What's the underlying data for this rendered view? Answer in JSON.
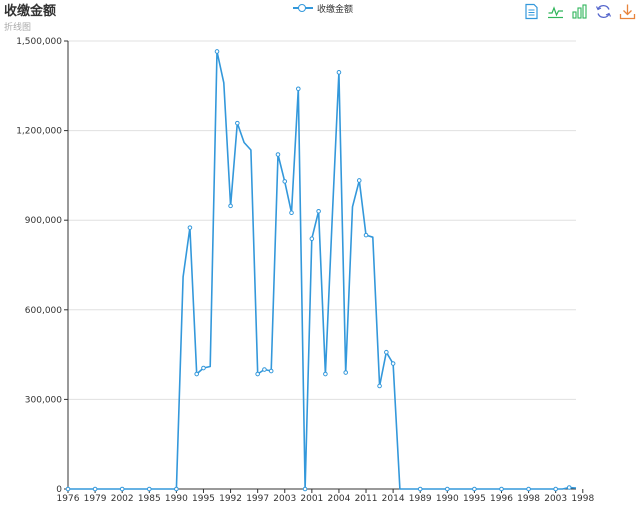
{
  "title": "收缴金额",
  "subtitle": "折线图",
  "legend_label": "收缴金额",
  "colors": {
    "series": "#3398DB",
    "grid": "#e0e0e0",
    "axis": "#333333"
  },
  "toolbox": [
    {
      "name": "data-view-icon",
      "color": "#3398DB"
    },
    {
      "name": "line-chart-icon",
      "color": "#2fb55a"
    },
    {
      "name": "bar-chart-icon",
      "color": "#2fb55a"
    },
    {
      "name": "restore-icon",
      "color": "#5566cc"
    },
    {
      "name": "save-image-icon",
      "color": "#e8843b"
    }
  ],
  "chart_data": {
    "type": "line",
    "title": "收缴金额",
    "subtitle": "折线图",
    "ylim": [
      0,
      1500000
    ],
    "y_ticks": [
      "0",
      "300,000",
      "600,000",
      "900,000",
      "1,200,000",
      "1,500,000"
    ],
    "x_tick_labels": [
      "1976",
      "1979",
      "2002",
      "1985",
      "1990",
      "1995",
      "1992",
      "1997",
      "2003",
      "2001",
      "2004",
      "2011",
      "2014",
      "1989",
      "1990",
      "1995",
      "1996",
      "1998",
      "2003",
      "1998"
    ],
    "series": [
      {
        "name": "收缴金额",
        "values": [
          0,
          0,
          0,
          0,
          0,
          0,
          0,
          0,
          0,
          0,
          0,
          0,
          0,
          0,
          0,
          0,
          0,
          710000,
          875000,
          385000,
          405000,
          410000,
          1465000,
          1360000,
          948000,
          1225000,
          1160000,
          1135000,
          385000,
          400000,
          395000,
          1120000,
          1030000,
          925000,
          1340000,
          0,
          838000,
          930000,
          385000,
          905000,
          1395000,
          390000,
          945000,
          1033000,
          850000,
          843000,
          345000,
          458000,
          420000,
          0,
          0,
          0,
          0,
          0,
          0,
          0,
          0,
          0,
          0,
          0,
          0,
          0,
          0,
          0,
          0,
          0,
          0,
          0,
          0,
          0,
          0,
          0,
          0,
          0,
          5000,
          3000
        ]
      }
    ]
  }
}
